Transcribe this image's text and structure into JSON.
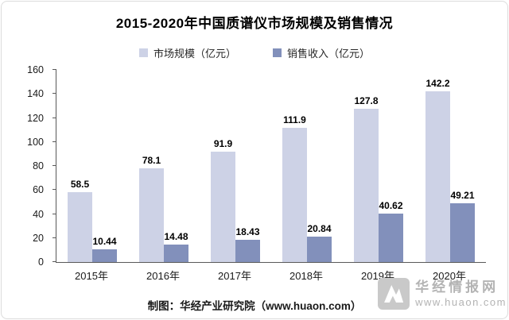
{
  "title": "2015-2020年中国质谱仪市场规模及销售情况",
  "legend": [
    {
      "label": "市场规模（亿元）",
      "color": "#cdd2e6"
    },
    {
      "label": "销售收入（亿元）",
      "color": "#8290bb"
    }
  ],
  "chart_data": {
    "type": "bar",
    "title": "2015-2020年中国质谱仪市场规模及销售情况",
    "categories": [
      "2015年",
      "2016年",
      "2017年",
      "2018年",
      "2019年",
      "2020年"
    ],
    "series": [
      {
        "name": "市场规模（亿元）",
        "color": "#cdd2e6",
        "values": [
          58.5,
          78.1,
          91.9,
          111.9,
          127.8,
          142.2
        ]
      },
      {
        "name": "销售收入（亿元）",
        "color": "#8290bb",
        "values": [
          10.44,
          14.48,
          18.43,
          20.84,
          40.62,
          49.21
        ]
      }
    ],
    "xlabel": "",
    "ylabel": "",
    "ylim": [
      0,
      160
    ],
    "ytick_step": 20,
    "grid": false,
    "legend_position": "top"
  },
  "footer": {
    "credit": "制图：华经产业研究院（www.huaon.com）"
  },
  "watermark": {
    "line1": "华经情报网",
    "line2": "www.huaon.com"
  }
}
